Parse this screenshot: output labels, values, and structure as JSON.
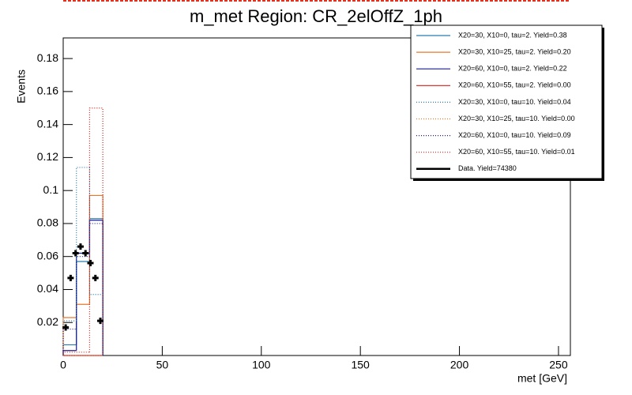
{
  "chart_data": {
    "type": "histogram",
    "title": "m_met Region: CR_2elOffZ_1ph",
    "x_label": "met [GeV]",
    "y_label": "Events",
    "xlim": [
      0,
      256
    ],
    "ylim": [
      0,
      0.1925
    ],
    "xticks": [
      0,
      50,
      100,
      150,
      200,
      250
    ],
    "yticks": [
      0.02,
      0.04,
      0.06,
      0.08,
      0.1,
      0.12,
      0.14,
      0.16,
      0.18
    ],
    "bins": [
      0,
      6.67,
      13.33,
      20
    ],
    "series": [
      {
        "name": "X20=30, X10=0, tau=2. Yield=0.38",
        "color": "#2a7ab0",
        "style": "solid",
        "values": [
          0.0065,
          0.057,
          0.083
        ]
      },
      {
        "name": "X20=30, X10=25, tau=2. Yield=0.20",
        "color": "#e8772e",
        "style": "solid",
        "values": [
          0.023,
          0.031,
          0.097
        ]
      },
      {
        "name": "X20=60, X10=0, tau=2. Yield=0.22",
        "color": "#1a1a8c",
        "style": "solid",
        "values": [
          0.003,
          0.062,
          0.082
        ]
      },
      {
        "name": "X20=60, X10=55, tau=2. Yield=0.00",
        "color": "#d62020",
        "style": "solid",
        "values": [
          0,
          0,
          0
        ]
      },
      {
        "name": "X20=30, X10=0, tau=10. Yield=0.04",
        "color": "#2a7ab0",
        "style": "dotted",
        "values": [
          0.021,
          0.114,
          0.037
        ]
      },
      {
        "name": "X20=30, X10=25, tau=10. Yield=0.00",
        "color": "#e8772e",
        "style": "dotted",
        "values": [
          0,
          0,
          0
        ]
      },
      {
        "name": "X20=60, X10=0, tau=10. Yield=0.09",
        "color": "#1a1a8c",
        "style": "dotted",
        "values": [
          0.016,
          0.06,
          0.08
        ]
      },
      {
        "name": "X20=60, X10=55, tau=10. Yield=0.01",
        "color": "#d62020",
        "style": "dotted",
        "values": [
          0.002,
          0.002,
          0.15
        ]
      }
    ],
    "data_points": {
      "name": "Data. Yield=74380",
      "color": "#000000",
      "x": [
        1.25,
        3.75,
        6.25,
        8.75,
        11.25,
        13.75,
        16.25,
        18.75
      ],
      "values": [
        0.017,
        0.047,
        0.062,
        0.066,
        0.062,
        0.056,
        0.047,
        0.021
      ]
    }
  }
}
